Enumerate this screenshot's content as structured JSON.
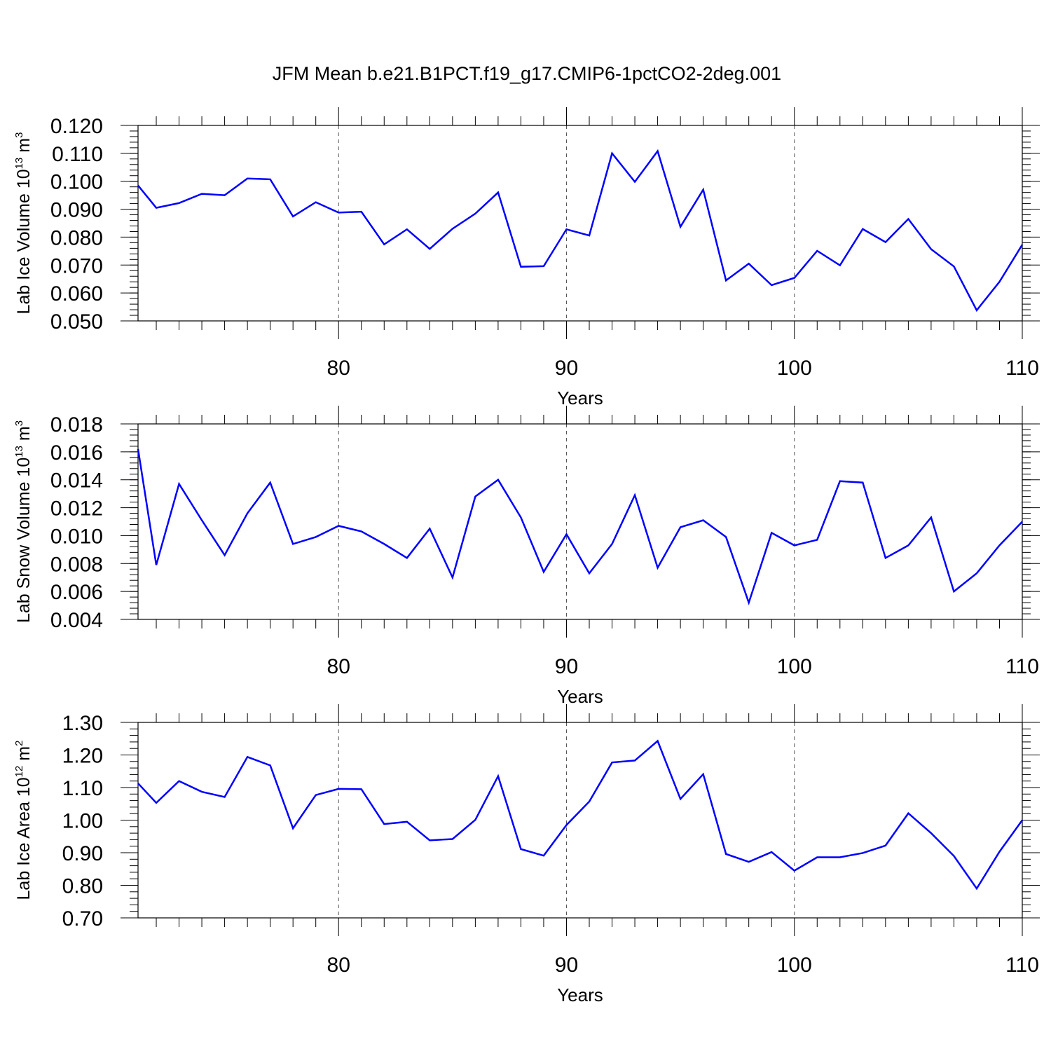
{
  "title": "JFM Mean b.e21.B1PCT.f19_g17.CMIP6-1pctCO2-2deg.001",
  "colors": {
    "line": "#0000ff",
    "axis": "#000000",
    "grid": "#555555"
  },
  "chart_data": [
    {
      "type": "line",
      "ylabel": {
        "main": "Lab Ice Volume 10",
        "sup": "13",
        "unit": " m",
        "unit_sup": "3"
      },
      "xlabel": "Years",
      "xlim": [
        71.2,
        110
      ],
      "ylim": [
        0.05,
        0.12
      ],
      "x_major_ticks": [
        80,
        90,
        100,
        110
      ],
      "x_major_labels": [
        "80",
        "90",
        "100",
        "110"
      ],
      "y_major_ticks": [
        0.05,
        0.06,
        0.07,
        0.08,
        0.09,
        0.1,
        0.11,
        0.12
      ],
      "y_major_labels": [
        "0.050",
        "0.060",
        "0.070",
        "0.080",
        "0.090",
        "0.100",
        "0.110",
        "0.120"
      ],
      "y_minor_step": 0.002,
      "grid_x": [
        80,
        90,
        100
      ],
      "x": [
        71.2,
        72,
        73,
        74,
        75,
        76,
        77,
        78,
        79,
        80,
        81,
        82,
        83,
        84,
        85,
        86,
        87,
        88,
        89,
        90,
        91,
        92,
        93,
        94,
        95,
        96,
        97,
        98,
        99,
        100,
        101,
        102,
        103,
        104,
        105,
        106,
        107,
        108,
        109,
        110
      ],
      "series": [
        {
          "values": [
            0.0985,
            0.0905,
            0.0922,
            0.0955,
            0.095,
            0.101,
            0.1007,
            0.0874,
            0.0925,
            0.0888,
            0.0891,
            0.0774,
            0.0828,
            0.0758,
            0.083,
            0.0884,
            0.096,
            0.0694,
            0.0696,
            0.0828,
            0.0806,
            0.11,
            0.0998,
            0.1108,
            0.0837,
            0.097,
            0.0645,
            0.0705,
            0.0628,
            0.0654,
            0.0751,
            0.0699,
            0.0829,
            0.0782,
            0.0865,
            0.0757,
            0.0695,
            0.0538,
            0.064,
            0.0773
          ]
        }
      ]
    },
    {
      "type": "line",
      "ylabel": {
        "main": "Lab Snow Volume 10",
        "sup": "13",
        "unit": " m",
        "unit_sup": "3"
      },
      "xlabel": "Years",
      "xlim": [
        71.2,
        110
      ],
      "ylim": [
        0.004,
        0.018
      ],
      "x_major_ticks": [
        80,
        90,
        100,
        110
      ],
      "x_major_labels": [
        "80",
        "90",
        "100",
        "110"
      ],
      "y_major_ticks": [
        0.004,
        0.006,
        0.008,
        0.01,
        0.012,
        0.014,
        0.016,
        0.018
      ],
      "y_major_labels": [
        "0.004",
        "0.006",
        "0.008",
        "0.010",
        "0.012",
        "0.014",
        "0.016",
        "0.018"
      ],
      "y_minor_step": 0.0004,
      "grid_x": [
        80,
        90,
        100
      ],
      "x": [
        71.2,
        72,
        73,
        74,
        75,
        76,
        77,
        78,
        79,
        80,
        81,
        82,
        83,
        84,
        85,
        86,
        87,
        88,
        89,
        90,
        91,
        92,
        93,
        94,
        95,
        96,
        97,
        98,
        99,
        100,
        101,
        102,
        103,
        104,
        105,
        106,
        107,
        108,
        109,
        110
      ],
      "series": [
        {
          "values": [
            0.0162,
            0.0079,
            0.0137,
            0.0111,
            0.0086,
            0.0116,
            0.0138,
            0.0094,
            0.0099,
            0.0107,
            0.0103,
            0.0094,
            0.0084,
            0.0105,
            0.007,
            0.0128,
            0.014,
            0.0113,
            0.0074,
            0.0101,
            0.0073,
            0.0094,
            0.0129,
            0.0077,
            0.0106,
            0.0111,
            0.0099,
            0.0052,
            0.0102,
            0.0093,
            0.0097,
            0.0139,
            0.0138,
            0.0084,
            0.0093,
            0.0113,
            0.006,
            0.0073,
            0.0093,
            0.011
          ]
        }
      ]
    },
    {
      "type": "line",
      "ylabel": {
        "main": "Lab Ice Area 10",
        "sup": "12",
        "unit": " m",
        "unit_sup": "2"
      },
      "xlabel": "Years",
      "xlim": [
        71.2,
        110
      ],
      "ylim": [
        0.7,
        1.3
      ],
      "x_major_ticks": [
        80,
        90,
        100,
        110
      ],
      "x_major_labels": [
        "80",
        "90",
        "100",
        "110"
      ],
      "y_major_ticks": [
        0.7,
        0.8,
        0.9,
        1.0,
        1.1,
        1.2,
        1.3
      ],
      "y_major_labels": [
        "0.70",
        "0.80",
        "0.90",
        "1.00",
        "1.10",
        "1.20",
        "1.30"
      ],
      "y_minor_step": 0.02,
      "grid_x": [
        80,
        90,
        100
      ],
      "x": [
        71.2,
        72,
        73,
        74,
        75,
        76,
        77,
        78,
        79,
        80,
        81,
        82,
        83,
        84,
        85,
        86,
        87,
        88,
        89,
        90,
        91,
        92,
        93,
        94,
        95,
        96,
        97,
        98,
        99,
        100,
        101,
        102,
        103,
        104,
        105,
        106,
        107,
        108,
        109,
        110
      ],
      "series": [
        {
          "values": [
            1.113,
            1.053,
            1.12,
            1.087,
            1.071,
            1.194,
            1.168,
            0.975,
            1.077,
            1.096,
            1.095,
            0.988,
            0.995,
            0.938,
            0.942,
            1.001,
            1.135,
            0.911,
            0.891,
            0.985,
            1.057,
            1.177,
            1.183,
            1.243,
            1.065,
            1.141,
            0.896,
            0.872,
            0.902,
            0.845,
            0.886,
            0.886,
            0.899,
            0.922,
            1.021,
            0.96,
            0.89,
            0.79,
            0.903,
            1.0
          ]
        }
      ]
    }
  ]
}
